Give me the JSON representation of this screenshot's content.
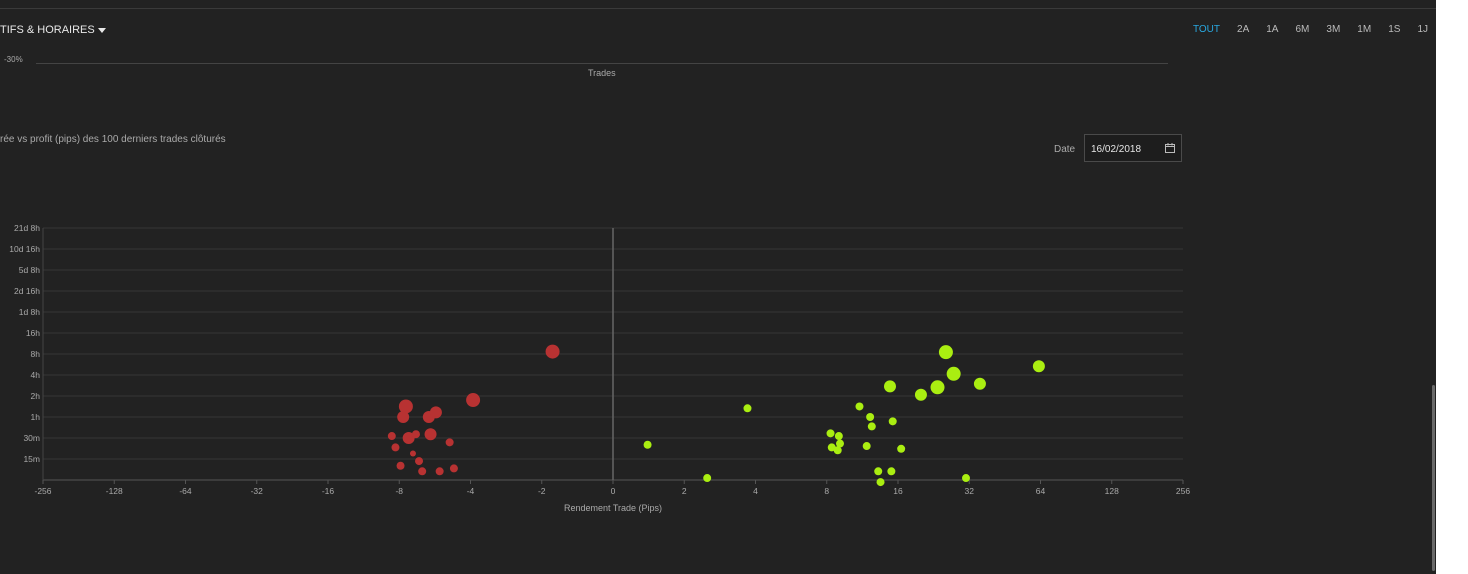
{
  "filter": {
    "label": "TIFS & HORAIRES"
  },
  "ranges": [
    {
      "label": "TOUT",
      "active": true
    },
    {
      "label": "2A",
      "active": false
    },
    {
      "label": "1A",
      "active": false
    },
    {
      "label": "6M",
      "active": false
    },
    {
      "label": "3M",
      "active": false
    },
    {
      "label": "1M",
      "active": false
    },
    {
      "label": "1S",
      "active": false
    },
    {
      "label": "1J",
      "active": false
    }
  ],
  "previous_chart": {
    "y_tick": "-30%",
    "x_title": "Trades"
  },
  "chart_title": "rée vs profit (pips) des 100 derniers trades clôturés",
  "date_filter": {
    "label": "Date",
    "value": "16/02/2018",
    "icon": "calendar-icon"
  },
  "colors": {
    "loss": "#b83232",
    "win": "#aaee11",
    "accent": "#29a8e0"
  },
  "chart_data": {
    "type": "scatter",
    "xlabel": "Rendement Trade (Pips)",
    "ylabel": "",
    "x_scale": "symmetric-log2",
    "xlim": [
      -256,
      256
    ],
    "x_ticks": [
      "-256",
      "-128",
      "-64",
      "-32",
      "-16",
      "-8",
      "-4",
      "-2",
      "0",
      "2",
      "4",
      "8",
      "16",
      "32",
      "64",
      "128",
      "256"
    ],
    "y_ticks": [
      "15m",
      "30m",
      "1h",
      "2h",
      "4h",
      "8h",
      "16h",
      "1d 8h",
      "2d 16h",
      "5d 8h",
      "10d 16h",
      "21d 8h"
    ],
    "series": [
      {
        "color": "#b83232",
        "points": [
          {
            "x": -8.6,
            "y": "0h32m",
            "r": 4
          },
          {
            "x": -8.3,
            "y": "0h22m",
            "r": 4
          },
          {
            "x": -7.9,
            "y": "0h12m",
            "r": 4
          },
          {
            "x": -7.7,
            "y": "1h00m",
            "r": 6
          },
          {
            "x": -7.5,
            "y": "1h25m",
            "r": 7
          },
          {
            "x": -7.3,
            "y": "0h30m",
            "r": 6
          },
          {
            "x": -7.0,
            "y": "0h18m",
            "r": 3
          },
          {
            "x": -6.8,
            "y": "0h34m",
            "r": 4
          },
          {
            "x": -6.6,
            "y": "0h14m",
            "r": 4
          },
          {
            "x": -6.4,
            "y": "0h10m",
            "r": 4
          },
          {
            "x": -6.0,
            "y": "1h00m",
            "r": 6
          },
          {
            "x": -5.9,
            "y": "0h34m",
            "r": 6
          },
          {
            "x": -5.6,
            "y": "1h10m",
            "r": 6
          },
          {
            "x": -5.4,
            "y": "0h10m",
            "r": 4
          },
          {
            "x": -4.9,
            "y": "0h26m",
            "r": 4
          },
          {
            "x": -4.7,
            "y": "0h11m",
            "r": 4
          },
          {
            "x": -3.9,
            "y": "1h45m",
            "r": 7
          },
          {
            "x": -1.8,
            "y": "8h40m",
            "r": 7
          }
        ]
      },
      {
        "color": "#aaee11",
        "points": [
          {
            "x": 1.4,
            "y": "0h24m",
            "r": 4
          },
          {
            "x": 2.5,
            "y": "0h08m",
            "r": 4
          },
          {
            "x": 3.7,
            "y": "1h20m",
            "r": 4
          },
          {
            "x": 8.3,
            "y": "0h35m",
            "r": 4
          },
          {
            "x": 8.4,
            "y": "0h22m",
            "r": 4
          },
          {
            "x": 8.9,
            "y": "0h20m",
            "r": 4
          },
          {
            "x": 9.0,
            "y": "0h32m",
            "r": 4
          },
          {
            "x": 9.1,
            "y": "0h25m",
            "r": 4
          },
          {
            "x": 11.0,
            "y": "1h25m",
            "r": 4
          },
          {
            "x": 11.8,
            "y": "0h23m",
            "r": 4
          },
          {
            "x": 12.2,
            "y": "1h00m",
            "r": 4
          },
          {
            "x": 12.4,
            "y": "0h44m",
            "r": 4
          },
          {
            "x": 13.2,
            "y": "0h10m",
            "r": 4
          },
          {
            "x": 13.5,
            "y": "0h07m",
            "r": 4
          },
          {
            "x": 14.8,
            "y": "2h45m",
            "r": 6
          },
          {
            "x": 15.0,
            "y": "0h10m",
            "r": 4
          },
          {
            "x": 15.2,
            "y": "0h52m",
            "r": 4
          },
          {
            "x": 16.5,
            "y": "0h21m",
            "r": 4
          },
          {
            "x": 20.0,
            "y": "2h05m",
            "r": 6
          },
          {
            "x": 23.5,
            "y": "2h40m",
            "r": 7
          },
          {
            "x": 25.5,
            "y": "8h30m",
            "r": 7
          },
          {
            "x": 27.5,
            "y": "4h10m",
            "r": 7
          },
          {
            "x": 31.0,
            "y": "0h08m",
            "r": 4
          },
          {
            "x": 35.5,
            "y": "3h00m",
            "r": 6
          },
          {
            "x": 63.0,
            "y": "5h20m",
            "r": 6
          }
        ]
      }
    ]
  }
}
